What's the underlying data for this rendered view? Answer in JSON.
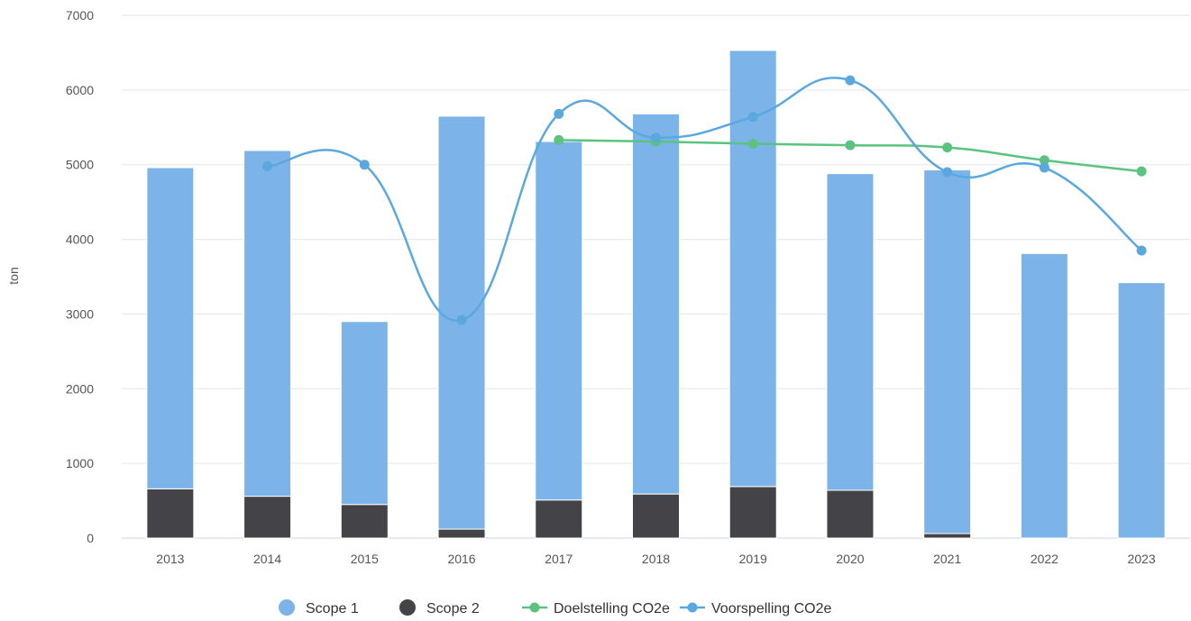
{
  "chart_data": {
    "type": "bar",
    "categories": [
      "2013",
      "2014",
      "2015",
      "2016",
      "2017",
      "2018",
      "2019",
      "2020",
      "2021",
      "2022",
      "2023"
    ],
    "ylabel": "ton",
    "ylim": [
      0,
      7000
    ],
    "yticks": [
      "0",
      "1000",
      "2000",
      "3000",
      "4000",
      "5000",
      "6000",
      "7000"
    ],
    "grid": true,
    "legend_position": "bottom",
    "series": [
      {
        "name": "Scope 1",
        "type": "bar",
        "stack": "emissions",
        "color": "#7cb4ea",
        "values": [
          4300,
          4630,
          2450,
          5530,
          4800,
          5090,
          5840,
          4240,
          4870,
          3810,
          3420
        ]
      },
      {
        "name": "Scope 2",
        "type": "bar",
        "stack": "emissions",
        "color": "#434348",
        "values": [
          660,
          560,
          450,
          120,
          510,
          590,
          690,
          640,
          60,
          0,
          0
        ]
      },
      {
        "name": "Doelstelling CO2e",
        "type": "line",
        "color": "#5bc27f",
        "values": [
          null,
          null,
          null,
          null,
          5330,
          5310,
          5280,
          5260,
          5230,
          5060,
          4910
        ]
      },
      {
        "name": "Voorspelling CO2e",
        "type": "line",
        "color": "#5aa8de",
        "values": [
          null,
          4980,
          5000,
          2920,
          5680,
          5360,
          5640,
          6130,
          4900,
          4960,
          3850
        ]
      }
    ]
  }
}
